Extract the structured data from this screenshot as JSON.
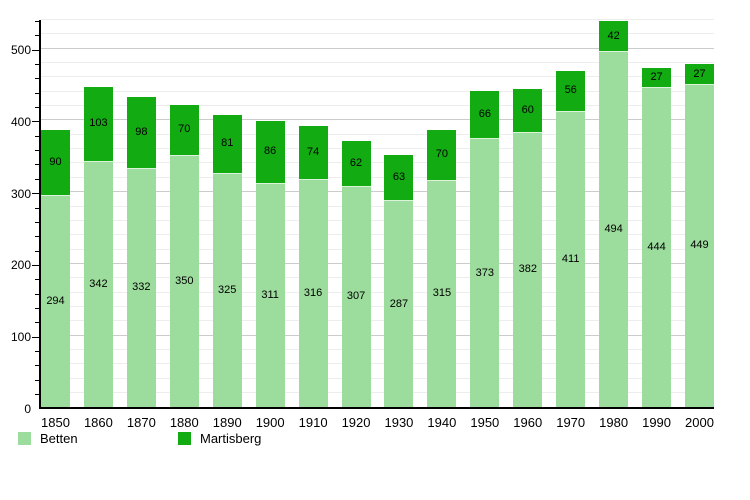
{
  "chart_data": {
    "type": "bar",
    "stacked": true,
    "title": "",
    "xlabel": "",
    "ylabel": "",
    "categories": [
      "1850",
      "1860",
      "1870",
      "1880",
      "1890",
      "1900",
      "1910",
      "1920",
      "1930",
      "1940",
      "1950",
      "1960",
      "1970",
      "1980",
      "1990",
      "2000"
    ],
    "series": [
      {
        "name": "Betten",
        "color": "#9cdc9c",
        "values": [
          294,
          342,
          332,
          350,
          325,
          311,
          316,
          307,
          287,
          315,
          373,
          382,
          411,
          494,
          444,
          449
        ]
      },
      {
        "name": "Martisberg",
        "color": "#12ab12",
        "values": [
          90,
          103,
          98,
          70,
          81,
          86,
          74,
          62,
          63,
          70,
          66,
          60,
          56,
          42,
          27,
          27
        ]
      }
    ],
    "ylim": [
      0,
      540
    ],
    "yticks_major": [
      0,
      100,
      200,
      300,
      400,
      500
    ],
    "ytick_minor_step": 20,
    "grid": true,
    "value_labels": "inside-center",
    "legend_position": "bottom-left",
    "colors": {
      "axis": "#000000",
      "grid_major": "#cccccc",
      "grid_minor": "#ededed",
      "background": "#ffffff",
      "label_text": "#000000"
    }
  }
}
